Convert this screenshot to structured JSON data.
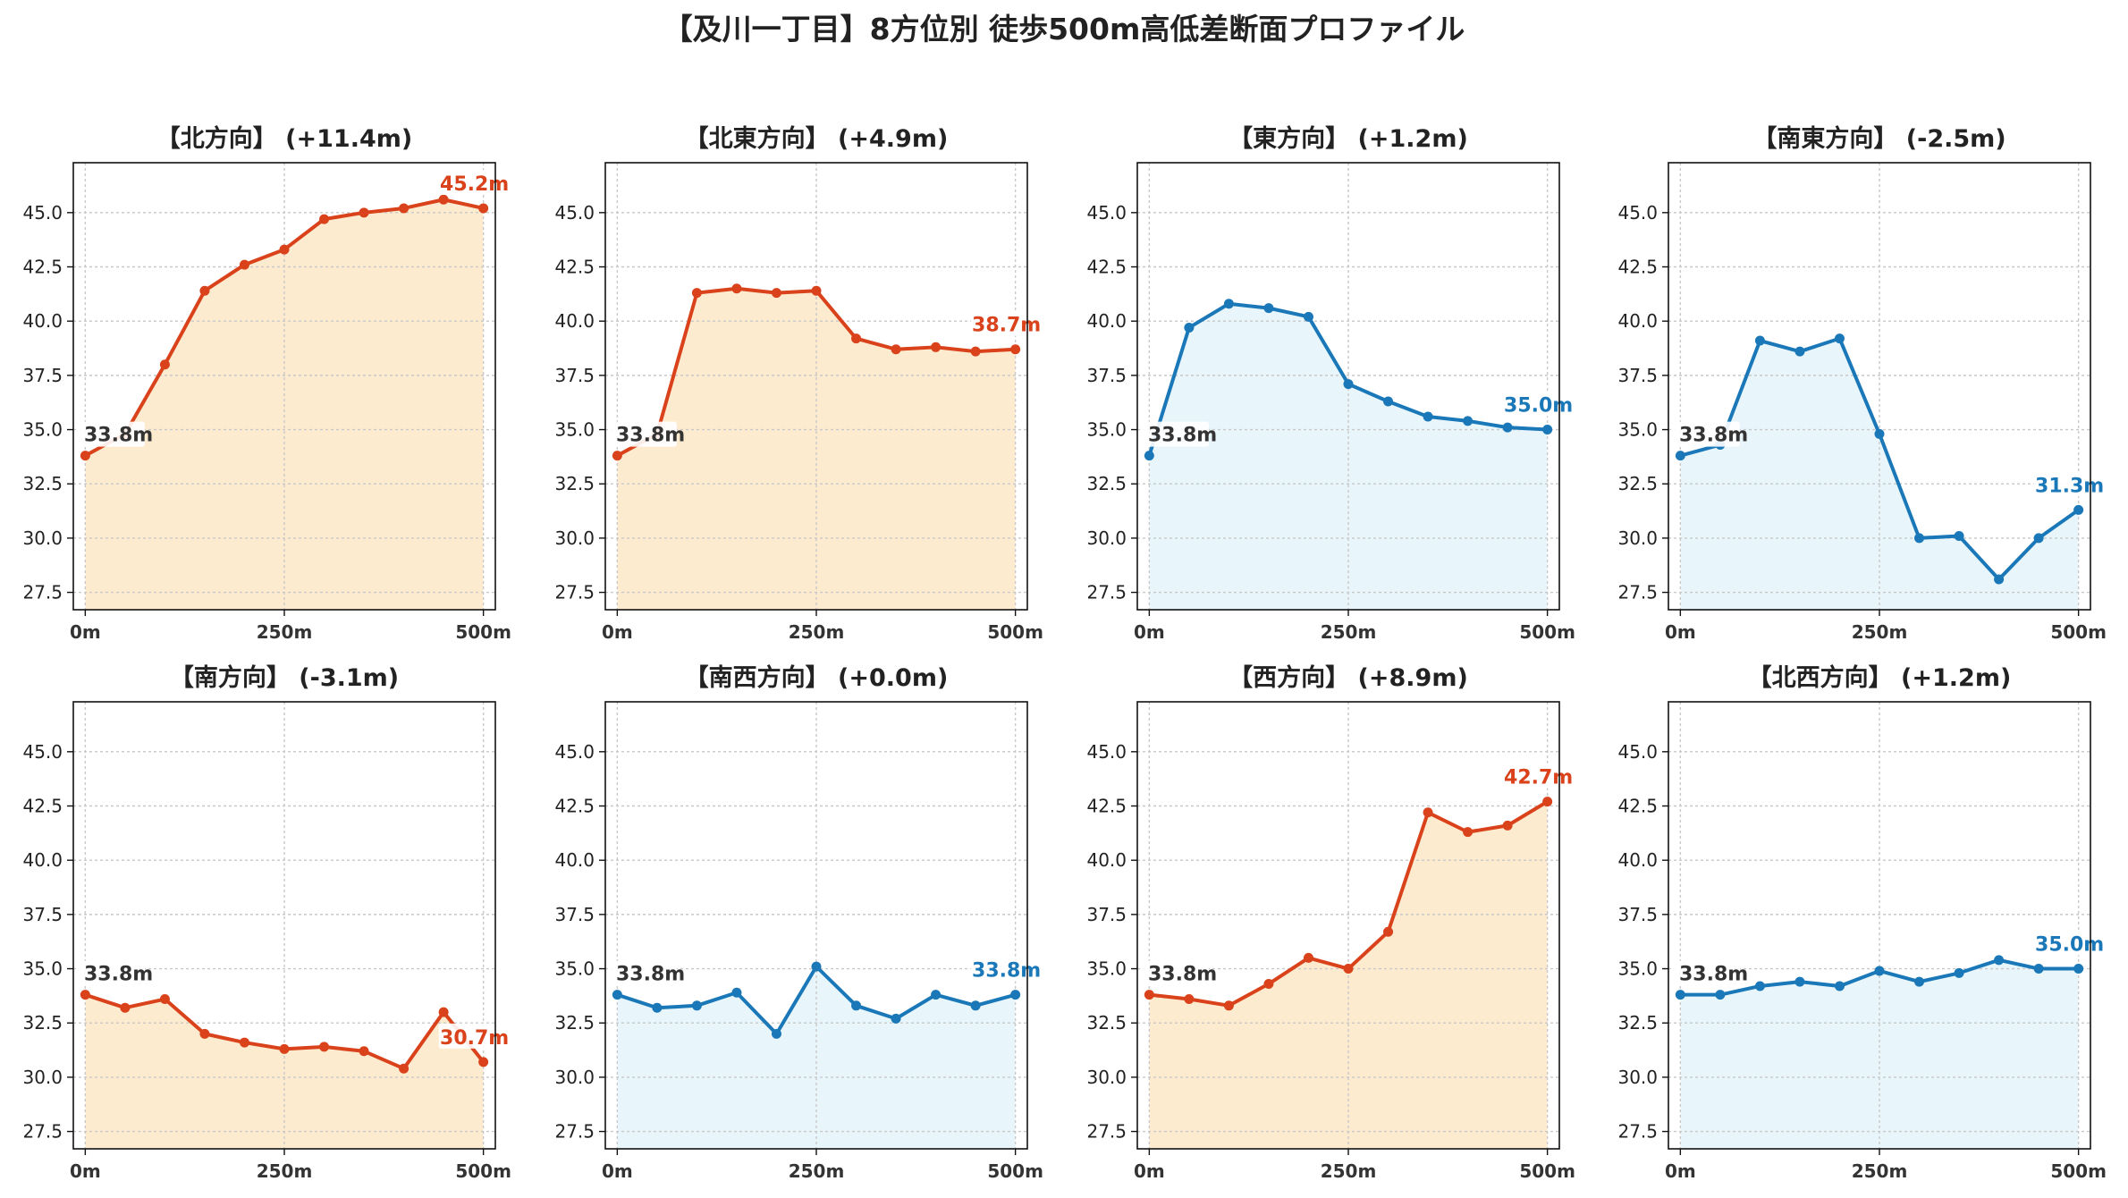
{
  "title": "【及川一丁目】8方位別 徒歩500m高低差断面プロファイル",
  "colors": {
    "up": "#d9421a",
    "up_fill": "#fdebd0",
    "down": "#1a78b8",
    "down_fill": "#e8f6fb"
  },
  "chart_data": [
    {
      "type": "line",
      "title": "【北方向】 (+11.4m)",
      "trend": "up",
      "x": [
        0,
        50,
        100,
        150,
        200,
        250,
        300,
        350,
        400,
        450,
        500
      ],
      "y": [
        33.8,
        34.8,
        38.0,
        41.4,
        42.6,
        43.3,
        44.7,
        45.0,
        45.2,
        45.6,
        45.2
      ],
      "start_label": "33.8m",
      "end_label": "45.2m",
      "xticks": [
        "0m",
        "250m",
        "500m"
      ],
      "yticks": [
        27.5,
        30.0,
        32.5,
        35.0,
        37.5,
        40.0,
        42.5,
        45.0
      ],
      "xlim": [
        -15,
        515
      ],
      "ylim": [
        26.7,
        47.3
      ],
      "grid": true
    },
    {
      "type": "line",
      "title": "【北東方向】 (+4.9m)",
      "trend": "up",
      "x": [
        0,
        50,
        100,
        150,
        200,
        250,
        300,
        350,
        400,
        450,
        500
      ],
      "y": [
        33.8,
        34.8,
        41.3,
        41.5,
        41.3,
        41.4,
        39.2,
        38.7,
        38.8,
        38.6,
        38.7
      ],
      "start_label": "33.8m",
      "end_label": "38.7m",
      "xticks": [
        "0m",
        "250m",
        "500m"
      ],
      "yticks": [
        27.5,
        30.0,
        32.5,
        35.0,
        37.5,
        40.0,
        42.5,
        45.0
      ],
      "xlim": [
        -15,
        515
      ],
      "ylim": [
        26.7,
        47.3
      ],
      "grid": true
    },
    {
      "type": "line",
      "title": "【東方向】 (+1.2m)",
      "trend": "down",
      "x": [
        0,
        50,
        100,
        150,
        200,
        250,
        300,
        350,
        400,
        450,
        500
      ],
      "y": [
        33.8,
        39.7,
        40.8,
        40.6,
        40.2,
        37.1,
        36.3,
        35.6,
        35.4,
        35.1,
        35.0
      ],
      "start_label": "33.8m",
      "end_label": "35.0m",
      "xticks": [
        "0m",
        "250m",
        "500m"
      ],
      "yticks": [
        27.5,
        30.0,
        32.5,
        35.0,
        37.5,
        40.0,
        42.5,
        45.0
      ],
      "xlim": [
        -15,
        515
      ],
      "ylim": [
        26.7,
        47.3
      ],
      "grid": true
    },
    {
      "type": "line",
      "title": "【南東方向】 (-2.5m)",
      "trend": "down",
      "x": [
        0,
        50,
        100,
        150,
        200,
        250,
        300,
        350,
        400,
        450,
        500
      ],
      "y": [
        33.8,
        34.3,
        39.1,
        38.6,
        39.2,
        34.8,
        30.0,
        30.1,
        28.1,
        30.0,
        31.3
      ],
      "start_label": "33.8m",
      "end_label": "31.3m",
      "xticks": [
        "0m",
        "250m",
        "500m"
      ],
      "yticks": [
        27.5,
        30.0,
        32.5,
        35.0,
        37.5,
        40.0,
        42.5,
        45.0
      ],
      "xlim": [
        -15,
        515
      ],
      "ylim": [
        26.7,
        47.3
      ],
      "grid": true
    },
    {
      "type": "line",
      "title": "【南方向】 (-3.1m)",
      "trend": "up",
      "x": [
        0,
        50,
        100,
        150,
        200,
        250,
        300,
        350,
        400,
        450,
        500
      ],
      "y": [
        33.8,
        33.2,
        33.6,
        32.0,
        31.6,
        31.3,
        31.4,
        31.2,
        30.4,
        33.0,
        30.7
      ],
      "start_label": "33.8m",
      "end_label": "30.7m",
      "xticks": [
        "0m",
        "250m",
        "500m"
      ],
      "yticks": [
        27.5,
        30.0,
        32.5,
        35.0,
        37.5,
        40.0,
        42.5,
        45.0
      ],
      "xlim": [
        -15,
        515
      ],
      "ylim": [
        26.7,
        47.3
      ],
      "grid": true
    },
    {
      "type": "line",
      "title": "【南西方向】 (+0.0m)",
      "trend": "down",
      "x": [
        0,
        50,
        100,
        150,
        200,
        250,
        300,
        350,
        400,
        450,
        500
      ],
      "y": [
        33.8,
        33.2,
        33.3,
        33.9,
        32.0,
        35.1,
        33.3,
        32.7,
        33.8,
        33.3,
        33.8
      ],
      "start_label": "33.8m",
      "end_label": "33.8m",
      "xticks": [
        "0m",
        "250m",
        "500m"
      ],
      "yticks": [
        27.5,
        30.0,
        32.5,
        35.0,
        37.5,
        40.0,
        42.5,
        45.0
      ],
      "xlim": [
        -15,
        515
      ],
      "ylim": [
        26.7,
        47.3
      ],
      "grid": true
    },
    {
      "type": "line",
      "title": "【西方向】 (+8.9m)",
      "trend": "up",
      "x": [
        0,
        50,
        100,
        150,
        200,
        250,
        300,
        350,
        400,
        450,
        500
      ],
      "y": [
        33.8,
        33.6,
        33.3,
        34.3,
        35.5,
        35.0,
        36.7,
        42.2,
        41.3,
        41.6,
        42.7
      ],
      "start_label": "33.8m",
      "end_label": "42.7m",
      "xticks": [
        "0m",
        "250m",
        "500m"
      ],
      "yticks": [
        27.5,
        30.0,
        32.5,
        35.0,
        37.5,
        40.0,
        42.5,
        45.0
      ],
      "xlim": [
        -15,
        515
      ],
      "ylim": [
        26.7,
        47.3
      ],
      "grid": true
    },
    {
      "type": "line",
      "title": "【北西方向】 (+1.2m)",
      "trend": "down",
      "x": [
        0,
        50,
        100,
        150,
        200,
        250,
        300,
        350,
        400,
        450,
        500
      ],
      "y": [
        33.8,
        33.8,
        34.2,
        34.4,
        34.2,
        34.9,
        34.4,
        34.8,
        35.4,
        35.0,
        35.0
      ],
      "start_label": "33.8m",
      "end_label": "35.0m",
      "xticks": [
        "0m",
        "250m",
        "500m"
      ],
      "yticks": [
        27.5,
        30.0,
        32.5,
        35.0,
        37.5,
        40.0,
        42.5,
        45.0
      ],
      "xlim": [
        -15,
        515
      ],
      "ylim": [
        26.7,
        47.3
      ],
      "grid": true
    }
  ]
}
